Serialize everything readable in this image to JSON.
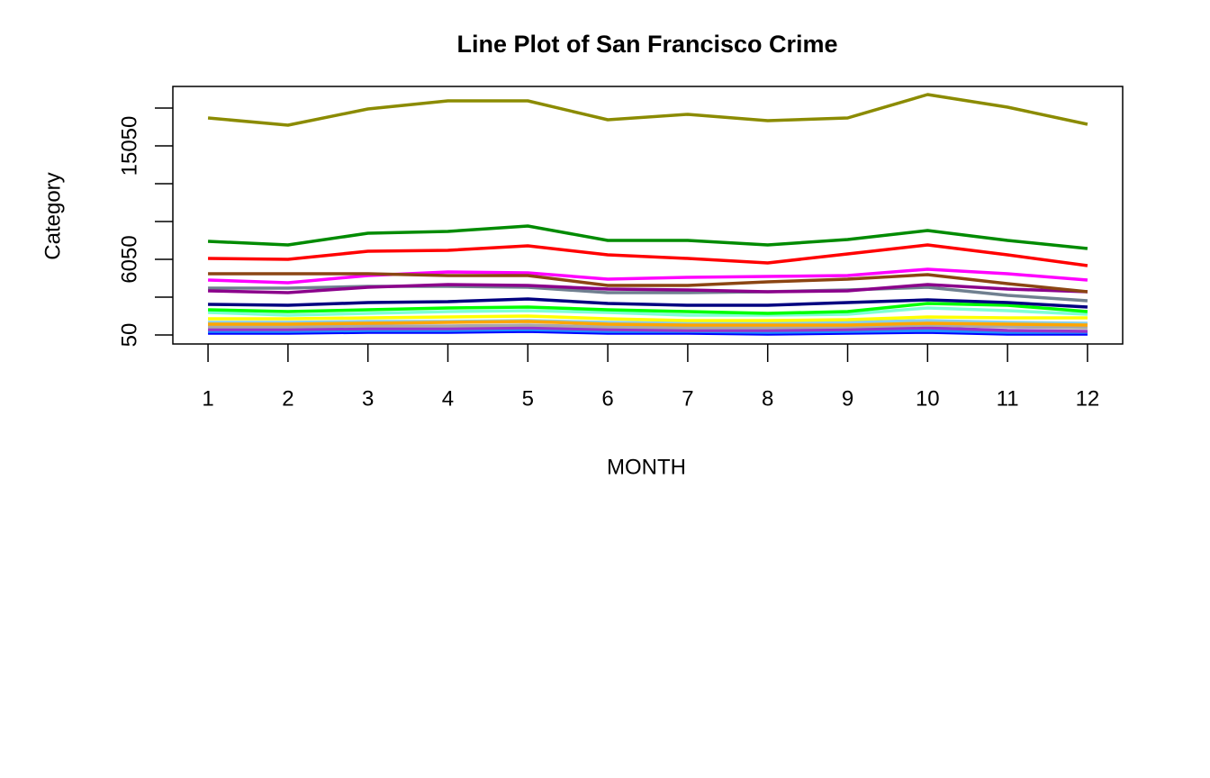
{
  "chart_data": {
    "type": "line",
    "title": "Line Plot of San Francisco Crime",
    "x_label": "MONTH",
    "y_label": "Category",
    "x": [
      1,
      2,
      3,
      4,
      5,
      6,
      7,
      8,
      9,
      10,
      11,
      12
    ],
    "xlim": [
      0.56,
      12.44
    ],
    "xticks": [
      1,
      2,
      3,
      4,
      5,
      6,
      7,
      8,
      9,
      10,
      11,
      12
    ],
    "ylim": [
      -664,
      19764
    ],
    "yticks": [
      50,
      {
        "value": 3050,
        "label": null
      },
      6050,
      {
        "value": 9050,
        "label": null
      },
      {
        "value": 12050,
        "label": null
      },
      15050,
      {
        "value": 18050,
        "label": null
      }
    ],
    "series": [
      {
        "color": "#8b8b00",
        "values": [
          17264,
          16693,
          17979,
          18621,
          18621,
          17121,
          17550,
          17050,
          17264,
          19121,
          18121,
          16764
        ]
      },
      {
        "color": "#008b00",
        "values": [
          7479,
          7193,
          8121,
          8264,
          8693,
          7550,
          7550,
          7193,
          7621,
          8336,
          7550,
          6907
        ]
      },
      {
        "color": "#ff0000",
        "values": [
          6122,
          6050,
          6693,
          6764,
          7121,
          6407,
          6122,
          5764,
          6479,
          7193,
          6407,
          5550
        ]
      },
      {
        "color": "#8b4513",
        "values": [
          4907,
          4907,
          4907,
          4764,
          4764,
          3979,
          3979,
          4264,
          4479,
          4836,
          4121,
          3479
        ]
      },
      {
        "color": "#ff00ff",
        "values": [
          4407,
          4193,
          4764,
          5050,
          4979,
          4479,
          4621,
          4693,
          4764,
          5264,
          4907,
          4407
        ]
      },
      {
        "color": "#8b008b",
        "values": [
          3550,
          3407,
          3836,
          4050,
          3979,
          3693,
          3621,
          3479,
          3550,
          4050,
          3693,
          3479
        ]
      },
      {
        "color": "#708090",
        "values": [
          3764,
          3764,
          3907,
          3907,
          3836,
          3407,
          3407,
          3479,
          3621,
          3836,
          3193,
          2764
        ]
      },
      {
        "color": "#000080",
        "values": [
          2479,
          2407,
          2621,
          2693,
          2907,
          2550,
          2407,
          2407,
          2621,
          2836,
          2621,
          2264
        ]
      },
      {
        "color": "#00ff00",
        "values": [
          2050,
          1907,
          2050,
          2193,
          2264,
          2050,
          1907,
          1764,
          1907,
          2550,
          2407,
          1907
        ]
      },
      {
        "color": "#7fffd4",
        "values": [
          1836,
          1621,
          1764,
          1907,
          1979,
          1836,
          1621,
          1621,
          1693,
          2193,
          1979,
          1693
        ]
      },
      {
        "color": "#ffff00",
        "values": [
          1336,
          1336,
          1407,
          1479,
          1550,
          1336,
          1193,
          1193,
          1264,
          1479,
          1407,
          1407
        ]
      },
      {
        "color": "#ffa500",
        "values": [
          907,
          907,
          979,
          1050,
          1121,
          907,
          836,
          836,
          836,
          979,
          907,
          836
        ]
      },
      {
        "color": "#87ceeb",
        "values": [
          1050,
          1050,
          1121,
          1121,
          1193,
          1050,
          979,
          979,
          1050,
          1193,
          1050,
          979
        ]
      },
      {
        "color": "#a9a9a9",
        "values": [
          693,
          693,
          764,
          764,
          836,
          693,
          621,
          621,
          693,
          836,
          693,
          621
        ]
      },
      {
        "color": "#9932cc",
        "values": [
          479,
          479,
          550,
          550,
          621,
          479,
          407,
          407,
          479,
          621,
          407,
          336
        ]
      },
      {
        "color": "#1e90ff",
        "values": [
          336,
          336,
          407,
          407,
          479,
          336,
          336,
          264,
          336,
          407,
          264,
          264
        ]
      },
      {
        "color": "#0000ff",
        "values": [
          193,
          193,
          264,
          264,
          336,
          193,
          193,
          121,
          193,
          264,
          121,
          121
        ]
      }
    ]
  }
}
